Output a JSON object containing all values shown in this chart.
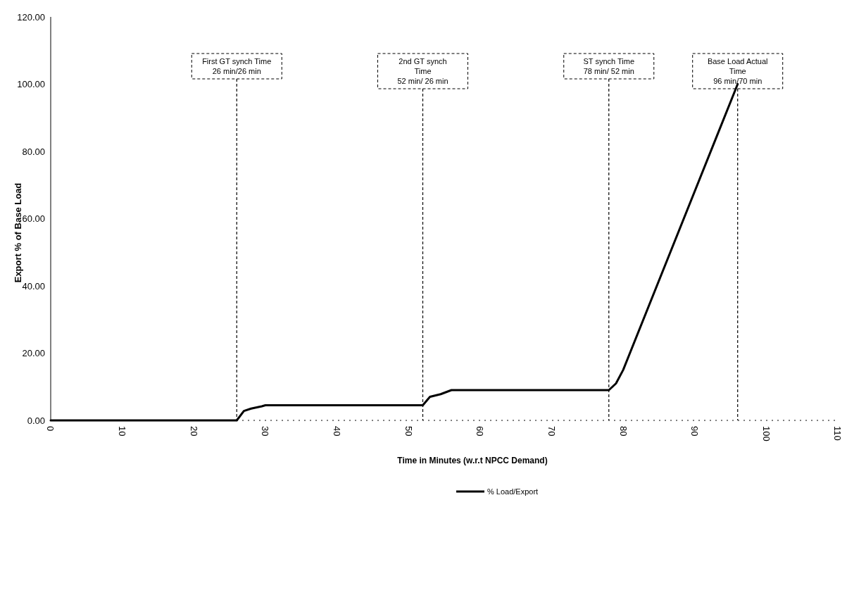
{
  "chart_data": {
    "type": "line",
    "xlabel": "Time in Minutes (w.r.t NPCC Demand)",
    "ylabel": "Export % of Base Load",
    "x": [
      0,
      26,
      27,
      28,
      29.5,
      30,
      52,
      53,
      54.5,
      56,
      78,
      79,
      80,
      96
    ],
    "series": [
      {
        "name": "% Load/Export",
        "color": "#000000",
        "values": [
          0,
          0,
          2.8,
          3.5,
          4.2,
          4.5,
          4.5,
          7,
          7.8,
          9,
          9,
          11,
          15,
          100
        ]
      }
    ],
    "xlim": [
      0,
      110
    ],
    "xticks": [
      0,
      10,
      20,
      30,
      40,
      50,
      60,
      70,
      80,
      90,
      100,
      110
    ],
    "ylim": [
      0,
      120
    ],
    "yticks": [
      {
        "value": 0,
        "label": "0.00"
      },
      {
        "value": 20,
        "label": "20.00"
      },
      {
        "value": 40,
        "label": "40.00"
      },
      {
        "value": 60,
        "label": "60.00"
      },
      {
        "value": 80,
        "label": "80.00"
      },
      {
        "value": 100,
        "label": "100.00"
      },
      {
        "value": 120,
        "label": "120.00"
      }
    ],
    "ref_lines": [
      {
        "axis": "x",
        "value": 26,
        "label": "First GT synch Time\n26 min/26 min",
        "line_style": "dashed"
      },
      {
        "axis": "x",
        "value": 52,
        "label": "2nd GT synch\nTime\n52 min/ 26 min",
        "line_style": "dashed"
      },
      {
        "axis": "x",
        "value": 78,
        "label": "ST synch Time\n78 min/ 52 min",
        "line_style": "dashed"
      },
      {
        "axis": "x",
        "value": 96,
        "label": "Base Load Actual\nTime\n96 min/70 min",
        "line_style": "dashed"
      }
    ],
    "legend": "bottom",
    "grid": false,
    "marker": "none",
    "line_style": "solid"
  }
}
